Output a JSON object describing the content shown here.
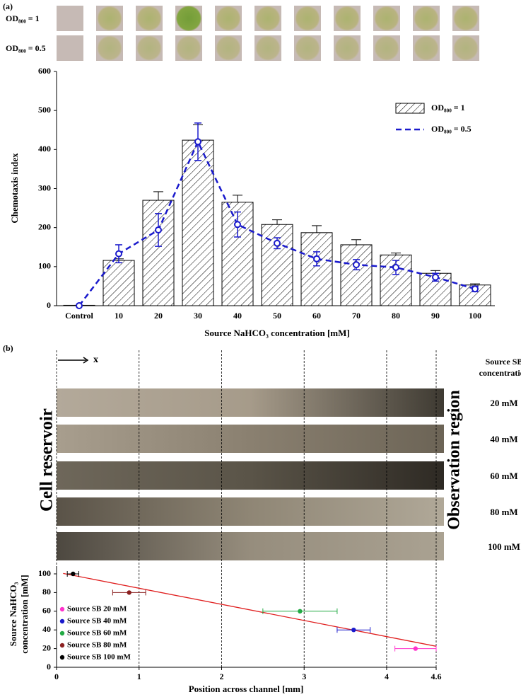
{
  "panel_labels": [
    "(a)",
    "(b)"
  ],
  "image_rows": [
    "OD₈₀₀ = 1",
    "OD₈₀₀ = 0.5"
  ],
  "strip_header": [
    "Source SB",
    "concentration"
  ],
  "strip_labels": [
    "20 mM",
    "40 mM",
    "60 mM",
    "80 mM",
    "100 mM"
  ],
  "region_labels": [
    "Cell reservoir",
    "Observation region"
  ],
  "arrow_label": "x",
  "chart_data": [
    {
      "type": "bar",
      "x_label": "Source NaHCO₃ concentration [mM]",
      "y_label": "Chemotaxis index",
      "categories": [
        "Control",
        "10",
        "20",
        "30",
        "40",
        "50",
        "60",
        "70",
        "80",
        "90",
        "100"
      ],
      "ylim": [
        0,
        600
      ],
      "yticks": [
        0,
        100,
        200,
        300,
        400,
        500,
        600
      ],
      "legend": "upper right",
      "series": [
        {
          "name": "OD₈₀₀ = 1",
          "type": "bar",
          "color": "#000000",
          "values": [
            1,
            116,
            270,
            424,
            265,
            208,
            187,
            156,
            130,
            83,
            53
          ],
          "errors": [
            0,
            4,
            22,
            40,
            18,
            12,
            18,
            13,
            5,
            7,
            3
          ]
        },
        {
          "name": "OD₈₀₀ = 0.5",
          "type": "line",
          "color": "#1a1acc",
          "values": [
            0,
            133,
            194,
            420,
            208,
            160,
            120,
            105,
            98,
            73,
            43
          ],
          "errors": [
            0,
            23,
            42,
            48,
            32,
            14,
            18,
            13,
            18,
            10,
            7
          ]
        }
      ]
    },
    {
      "type": "scatter",
      "x_label": "Position across channel [mm]",
      "y_label": [
        "Source NaHCO₃",
        "concentration [mM]"
      ],
      "xlim": [
        0,
        4.6
      ],
      "xticks": [
        0,
        1,
        2,
        3,
        4,
        4.6
      ],
      "ylim": [
        0,
        100
      ],
      "yticks": [
        0,
        20,
        40,
        60,
        80,
        100
      ],
      "grid": true,
      "legend": "lower left",
      "series": [
        {
          "name": "Source SB 20 mM",
          "color": "#ff33cc",
          "x": [
            4.35
          ],
          "values": [
            20
          ],
          "x_errors": [
            0.25
          ]
        },
        {
          "name": "Source SB 40 mM",
          "color": "#1a1acc",
          "x": [
            3.6
          ],
          "values": [
            40
          ],
          "x_errors": [
            0.2
          ]
        },
        {
          "name": "Source SB 60 mM",
          "color": "#22aa44",
          "x": [
            2.95
          ],
          "values": [
            60
          ],
          "x_errors": [
            0.45
          ]
        },
        {
          "name": "Source SB 80 mM",
          "color": "#8b2020",
          "x": [
            0.88
          ],
          "values": [
            80
          ],
          "x_errors": [
            0.2
          ]
        },
        {
          "name": "Source SB 100 mM",
          "color": "#000000",
          "x": [
            0.2
          ],
          "values": [
            100
          ],
          "x_errors": [
            0.07
          ]
        }
      ],
      "trend_line": {
        "color": "#e02020",
        "x": [
          0.08,
          4.6
        ],
        "values": [
          100.5,
          22.5
        ]
      }
    }
  ]
}
